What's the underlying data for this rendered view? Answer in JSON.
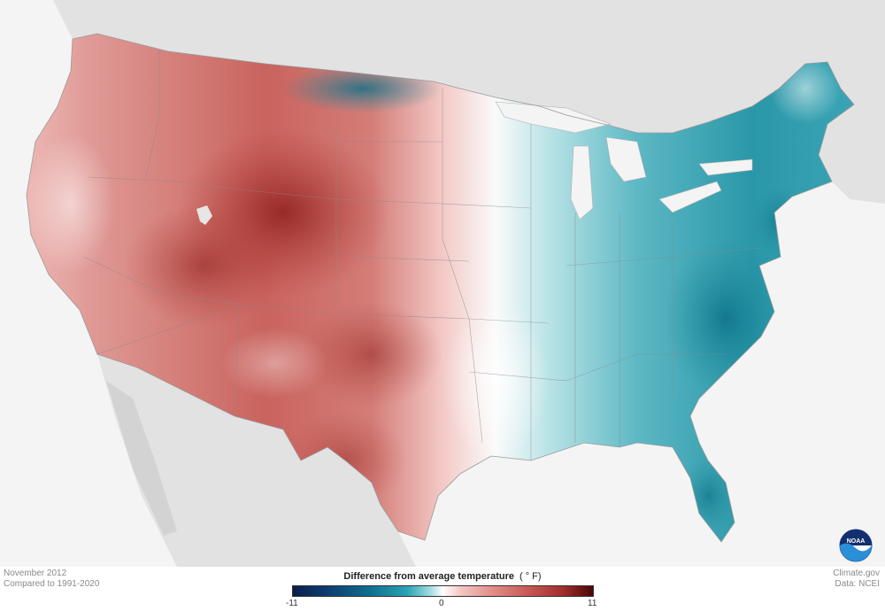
{
  "footer": {
    "month": "November 2012",
    "comparison": "Compared to 1991-2020",
    "source_site": "Climate.gov",
    "source_data": "Data: NCEI"
  },
  "legend": {
    "title": "Difference from average temperature",
    "unit": "( ° F)",
    "min_label": "-11",
    "mid_label": "0",
    "max_label": "11"
  },
  "logo": {
    "text": "NOAA"
  },
  "colors": {
    "cold_extreme": "#0c1e4a",
    "cold": "#1e8ea0",
    "neutral": "#ffffff",
    "warm": "#d06b66",
    "warm_extreme": "#4a0707",
    "land_background": "#e2e2e2",
    "water": "#f4f4f4"
  },
  "chart_data": {
    "type": "heatmap",
    "region": "Contiguous United States",
    "scale": {
      "min": -11,
      "mid": 0,
      "max": 11
    }
  }
}
